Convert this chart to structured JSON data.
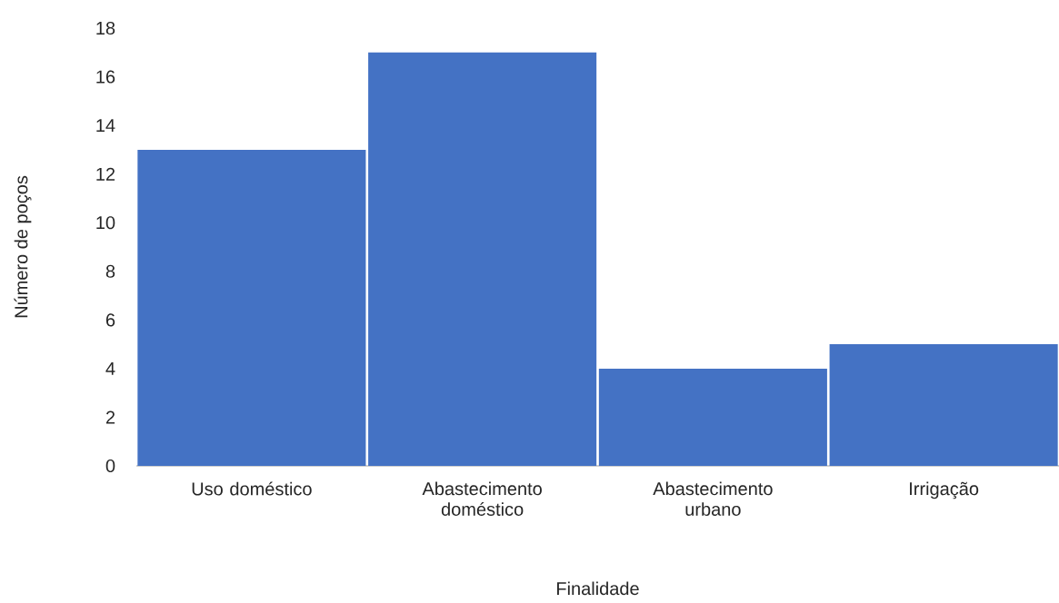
{
  "chart_data": {
    "type": "bar",
    "categories": [
      "Uso doméstico",
      "Abastecimento doméstico",
      "Abastecimento urbano",
      "Irrigação"
    ],
    "values": [
      13,
      17,
      4,
      5
    ],
    "color": "#4472c4",
    "ylim": [
      0,
      18
    ],
    "yticks": [
      0,
      2,
      4,
      6,
      8,
      10,
      12,
      14,
      16,
      18
    ],
    "xlabel": "Finalidade",
    "ylabel": "Número de poços"
  }
}
